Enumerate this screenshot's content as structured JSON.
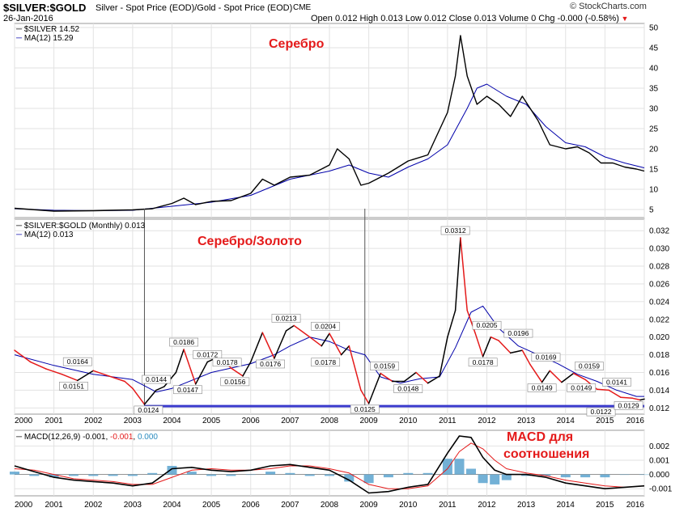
{
  "header": {
    "symbol": "$SILVER:$GOLD",
    "description": "Silver - Spot Price (EOD)/Gold - Spot Price (EOD)",
    "exchange": "CME",
    "date": "26-Jan-2016",
    "ohlc_text": "Open 0.012  High 0.013  Low 0.012  Close 0.013  Volume 0  Chg -0.000 (-0.58%)",
    "logo": "© StockCharts.com",
    "colors": {
      "red": "#e41a1a",
      "blue": "#0000aa",
      "hline": "#3a3acc",
      "hist": "#5ba3cf"
    }
  },
  "overlays": {
    "silver": "Серебро",
    "ratio": "Серебро/Золото",
    "macd_line1": "MACD для",
    "macd_line2": "соотношения"
  },
  "chart_data": [
    {
      "type": "line",
      "panel": "silver",
      "legend": [
        "$SILVER 14.52",
        "MA(12) 15.29"
      ],
      "ylim": [
        3,
        51
      ],
      "y_ticks": [
        "5",
        "10",
        "15",
        "20",
        "25",
        "30",
        "35",
        "40",
        "45",
        "50"
      ],
      "x_ticks": [
        "2000",
        "2001",
        "2002",
        "2003",
        "2004",
        "2005",
        "2006",
        "2007",
        "2008",
        "2009",
        "2010",
        "2011",
        "2012",
        "2013",
        "2014",
        "2015",
        "2016"
      ],
      "series": [
        {
          "name": "$SILVER",
          "x": [
            2000.0,
            2001.0,
            2002.0,
            2003.0,
            2003.5,
            2004.0,
            2004.3,
            2004.6,
            2005.0,
            2005.5,
            2006.0,
            2006.3,
            2006.6,
            2007.0,
            2007.5,
            2008.0,
            2008.2,
            2008.5,
            2008.8,
            2009.0,
            2009.5,
            2010.0,
            2010.5,
            2011.0,
            2011.2,
            2011.33,
            2011.5,
            2011.75,
            2012.0,
            2012.3,
            2012.6,
            2012.9,
            2013.3,
            2013.6,
            2014.0,
            2014.3,
            2014.6,
            2014.9,
            2015.2,
            2015.5,
            2015.8,
            2016.0
          ],
          "values": [
            5.3,
            4.6,
            4.7,
            4.9,
            5.2,
            6.5,
            7.8,
            6.2,
            7.0,
            7.2,
            9.0,
            12.5,
            11.0,
            13.0,
            13.5,
            16.0,
            20.0,
            17.5,
            11.0,
            11.5,
            14.0,
            17.0,
            18.5,
            29.0,
            38.0,
            48.0,
            38.0,
            31.0,
            33.0,
            31.0,
            28.0,
            33.0,
            27.0,
            21.0,
            20.0,
            20.5,
            19.0,
            16.5,
            16.5,
            15.5,
            15.0,
            14.5
          ]
        },
        {
          "name": "MA(12)",
          "x": [
            2000.0,
            2001.0,
            2002.0,
            2003.0,
            2004.0,
            2005.0,
            2006.0,
            2007.0,
            2008.0,
            2008.5,
            2009.0,
            2009.5,
            2010.0,
            2010.5,
            2011.0,
            2011.5,
            2011.75,
            2012.0,
            2012.5,
            2013.0,
            2013.5,
            2014.0,
            2014.5,
            2015.0,
            2015.5,
            2016.0
          ],
          "values": [
            5.2,
            4.8,
            4.7,
            4.8,
            5.8,
            6.8,
            8.5,
            12.5,
            14.5,
            16.0,
            14.0,
            13.0,
            15.5,
            17.5,
            21.0,
            30.0,
            35.0,
            36.0,
            33.0,
            31.0,
            25.5,
            21.5,
            20.5,
            18.0,
            16.5,
            15.3
          ]
        }
      ]
    },
    {
      "type": "line",
      "panel": "ratio",
      "legend": [
        "$SILVER:$GOLD (Monthly) 0.013",
        "MA(12) 0.013"
      ],
      "ylim": [
        0.0113,
        0.0333
      ],
      "y_ticks": [
        "0.012",
        "0.014",
        "0.016",
        "0.018",
        "0.020",
        "0.022",
        "0.024",
        "0.026",
        "0.028",
        "0.030",
        "0.032"
      ],
      "x_ticks": [
        "2000",
        "2001",
        "2002",
        "2003",
        "2004",
        "2005",
        "2006",
        "2007",
        "2008",
        "2009",
        "2010",
        "2011",
        "2012",
        "2013",
        "2014",
        "2015",
        "2016"
      ],
      "series": [
        {
          "name": "$SILVER:$GOLD",
          "x": [
            2000.0,
            2000.4,
            2000.8,
            2001.2,
            2001.6,
            2002.0,
            2002.4,
            2002.8,
            2003.0,
            2003.3,
            2003.6,
            2003.8,
            2004.1,
            2004.3,
            2004.6,
            2004.9,
            2005.2,
            2005.5,
            2005.8,
            2006.0,
            2006.3,
            2006.6,
            2006.9,
            2007.1,
            2007.5,
            2007.8,
            2008.0,
            2008.3,
            2008.5,
            2008.8,
            2009.0,
            2009.3,
            2009.6,
            2009.9,
            2010.2,
            2010.5,
            2010.8,
            2011.0,
            2011.2,
            2011.33,
            2011.5,
            2011.7,
            2011.9,
            2012.1,
            2012.3,
            2012.6,
            2012.9,
            2013.1,
            2013.4,
            2013.6,
            2013.9,
            2014.2,
            2014.5,
            2014.8,
            2015.1,
            2015.4,
            2015.7,
            2015.9,
            2016.0
          ],
          "values": [
            0.0185,
            0.0172,
            0.0164,
            0.0158,
            0.0151,
            0.0162,
            0.0156,
            0.015,
            0.0142,
            0.0124,
            0.014,
            0.0144,
            0.016,
            0.0186,
            0.0147,
            0.0172,
            0.0178,
            0.0165,
            0.0156,
            0.0172,
            0.0205,
            0.0176,
            0.0207,
            0.0213,
            0.02,
            0.019,
            0.0204,
            0.018,
            0.019,
            0.014,
            0.0125,
            0.0159,
            0.015,
            0.015,
            0.016,
            0.0148,
            0.0156,
            0.02,
            0.023,
            0.0312,
            0.023,
            0.0205,
            0.0178,
            0.02,
            0.0196,
            0.0182,
            0.0185,
            0.0169,
            0.0149,
            0.0162,
            0.0149,
            0.0159,
            0.0152,
            0.0141,
            0.014,
            0.0132,
            0.0131,
            0.0129,
            0.013
          ]
        },
        {
          "name": "MA(12)",
          "x": [
            2000.0,
            2001.0,
            2002.0,
            2003.0,
            2003.6,
            2004.0,
            2005.0,
            2006.0,
            2006.6,
            2007.0,
            2007.5,
            2008.0,
            2008.5,
            2008.9,
            2009.3,
            2009.8,
            2010.3,
            2010.8,
            2011.2,
            2011.6,
            2011.9,
            2012.3,
            2012.8,
            2013.3,
            2013.8,
            2014.3,
            2014.8,
            2015.3,
            2015.8,
            2016.0
          ],
          "values": [
            0.018,
            0.0168,
            0.0158,
            0.0152,
            0.0138,
            0.0142,
            0.016,
            0.017,
            0.018,
            0.019,
            0.02,
            0.0195,
            0.0185,
            0.018,
            0.0155,
            0.0148,
            0.0153,
            0.0155,
            0.0188,
            0.0228,
            0.0235,
            0.021,
            0.019,
            0.018,
            0.017,
            0.0158,
            0.015,
            0.014,
            0.0133,
            0.0133
          ]
        }
      ],
      "hline": 0.0122,
      "data_labels": [
        {
          "x": 2001.6,
          "y": 0.0164,
          "text": "0.0164"
        },
        {
          "x": 2001.5,
          "y": 0.0151,
          "text": "0.0151"
        },
        {
          "x": 2003.6,
          "y": 0.0144,
          "text": "0.0144"
        },
        {
          "x": 2003.4,
          "y": 0.0124,
          "text": "0.0124"
        },
        {
          "x": 2004.3,
          "y": 0.0186,
          "text": "0.0186"
        },
        {
          "x": 2004.9,
          "y": 0.0172,
          "text": "0.0172"
        },
        {
          "x": 2004.4,
          "y": 0.0147,
          "text": "0.0147"
        },
        {
          "x": 2005.4,
          "y": 0.0178,
          "text": "0.0178"
        },
        {
          "x": 2005.6,
          "y": 0.0156,
          "text": "0.0156"
        },
        {
          "x": 2006.5,
          "y": 0.0176,
          "text": "0.0176"
        },
        {
          "x": 2006.9,
          "y": 0.0213,
          "text": "0.0213"
        },
        {
          "x": 2007.9,
          "y": 0.0204,
          "text": "0.0204"
        },
        {
          "x": 2007.9,
          "y": 0.0178,
          "text": "0.0178"
        },
        {
          "x": 2009.4,
          "y": 0.0159,
          "text": "0.0159"
        },
        {
          "x": 2008.9,
          "y": 0.0125,
          "text": "0.0125"
        },
        {
          "x": 2010.0,
          "y": 0.0148,
          "text": "0.0148"
        },
        {
          "x": 2011.2,
          "y": 0.0312,
          "text": "0.0312"
        },
        {
          "x": 2012.0,
          "y": 0.0205,
          "text": "0.0205"
        },
        {
          "x": 2011.9,
          "y": 0.0178,
          "text": "0.0178"
        },
        {
          "x": 2012.8,
          "y": 0.0196,
          "text": "0.0196"
        },
        {
          "x": 2013.5,
          "y": 0.0169,
          "text": "0.0169"
        },
        {
          "x": 2013.4,
          "y": 0.0149,
          "text": "0.0149"
        },
        {
          "x": 2014.4,
          "y": 0.0149,
          "text": "0.0149"
        },
        {
          "x": 2014.6,
          "y": 0.0159,
          "text": "0.0159"
        },
        {
          "x": 2015.3,
          "y": 0.0141,
          "text": "0.0141"
        },
        {
          "x": 2014.9,
          "y": 0.0122,
          "text": "0.0122"
        },
        {
          "x": 2015.6,
          "y": 0.0129,
          "text": "0.0129"
        }
      ]
    },
    {
      "type": "line",
      "panel": "macd",
      "legend": [
        "MACD(12,26,9)",
        "-0.001",
        "-0.001",
        "0.000"
      ],
      "ylim": [
        -0.0015,
        0.0031
      ],
      "y_ticks": [
        "0.002",
        "0.001",
        "0.000",
        "-0.001"
      ],
      "x_ticks": [
        "2000",
        "2001",
        "2002",
        "2003",
        "2004",
        "2005",
        "2006",
        "2007",
        "2008",
        "2009",
        "2010",
        "2011",
        "2012",
        "2013",
        "2014",
        "2015",
        "2016"
      ],
      "series": [
        {
          "name": "MACD",
          "x": [
            2000.0,
            2000.5,
            2001.0,
            2001.5,
            2002.0,
            2002.5,
            2003.0,
            2003.5,
            2004.0,
            2004.5,
            2005.0,
            2005.5,
            2006.0,
            2006.5,
            2007.0,
            2007.5,
            2008.0,
            2008.5,
            2009.0,
            2009.5,
            2010.0,
            2010.5,
            2011.0,
            2011.3,
            2011.6,
            2011.9,
            2012.2,
            2012.5,
            2013.0,
            2013.5,
            2014.0,
            2014.5,
            2015.0,
            2015.5,
            2016.0
          ],
          "values": [
            0.0006,
            0.0002,
            -0.0002,
            -0.0004,
            -0.0005,
            -0.0006,
            -0.0008,
            -0.0006,
            0.0004,
            0.0005,
            0.0003,
            0.0002,
            0.0003,
            0.0006,
            0.0007,
            0.0005,
            0.0003,
            -0.0004,
            -0.0013,
            -0.0012,
            -0.0009,
            -0.0007,
            0.0015,
            0.0027,
            0.0026,
            0.0012,
            0.0003,
            0.0,
            0.0,
            -0.0002,
            -0.0006,
            -0.0008,
            -0.001,
            -0.0009,
            -0.0008
          ]
        },
        {
          "name": "Signal",
          "x": [
            2000.0,
            2000.5,
            2001.0,
            2001.5,
            2002.0,
            2002.5,
            2003.0,
            2003.5,
            2004.0,
            2004.5,
            2005.0,
            2005.5,
            2006.0,
            2006.5,
            2007.0,
            2007.5,
            2008.0,
            2008.5,
            2009.0,
            2009.5,
            2010.0,
            2010.5,
            2011.0,
            2011.3,
            2011.6,
            2011.9,
            2012.2,
            2012.5,
            2013.0,
            2013.5,
            2014.0,
            2014.5,
            2015.0,
            2015.5,
            2016.0
          ],
          "values": [
            0.0004,
            0.0003,
            0.0,
            -0.0003,
            -0.0004,
            -0.0005,
            -0.0007,
            -0.0007,
            -0.0002,
            0.0003,
            0.0004,
            0.0003,
            0.0003,
            0.0004,
            0.0006,
            0.0006,
            0.0004,
            0.0001,
            -0.0007,
            -0.001,
            -0.001,
            -0.0008,
            0.0004,
            0.0016,
            0.0022,
            0.0018,
            0.001,
            0.0004,
            0.0001,
            -0.0001,
            -0.0004,
            -0.0006,
            -0.0008,
            -0.0009,
            -0.0008
          ]
        },
        {
          "name": "Histogram",
          "x": [
            2000.0,
            2000.5,
            2001.0,
            2001.5,
            2002.0,
            2002.5,
            2003.0,
            2003.5,
            2004.0,
            2004.5,
            2005.0,
            2005.5,
            2006.0,
            2006.5,
            2007.0,
            2007.5,
            2008.0,
            2008.5,
            2009.0,
            2009.5,
            2010.0,
            2010.5,
            2011.0,
            2011.3,
            2011.6,
            2011.9,
            2012.2,
            2012.5,
            2013.0,
            2013.5,
            2014.0,
            2014.5,
            2015.0,
            2015.5,
            2016.0
          ],
          "values": [
            0.0002,
            -0.0001,
            -0.0002,
            -0.0001,
            -0.0001,
            -0.0001,
            -0.0001,
            0.0001,
            0.0006,
            0.0002,
            -0.0001,
            -0.0001,
            0.0,
            0.0002,
            0.0001,
            -0.0001,
            -0.0001,
            -0.0005,
            -0.0006,
            -0.0002,
            0.0001,
            0.0001,
            0.0011,
            0.0011,
            0.0004,
            -0.0006,
            -0.0007,
            -0.0004,
            -0.0001,
            -0.0001,
            -0.0002,
            -0.0002,
            -0.0002,
            0.0,
            0.0
          ]
        }
      ]
    }
  ]
}
